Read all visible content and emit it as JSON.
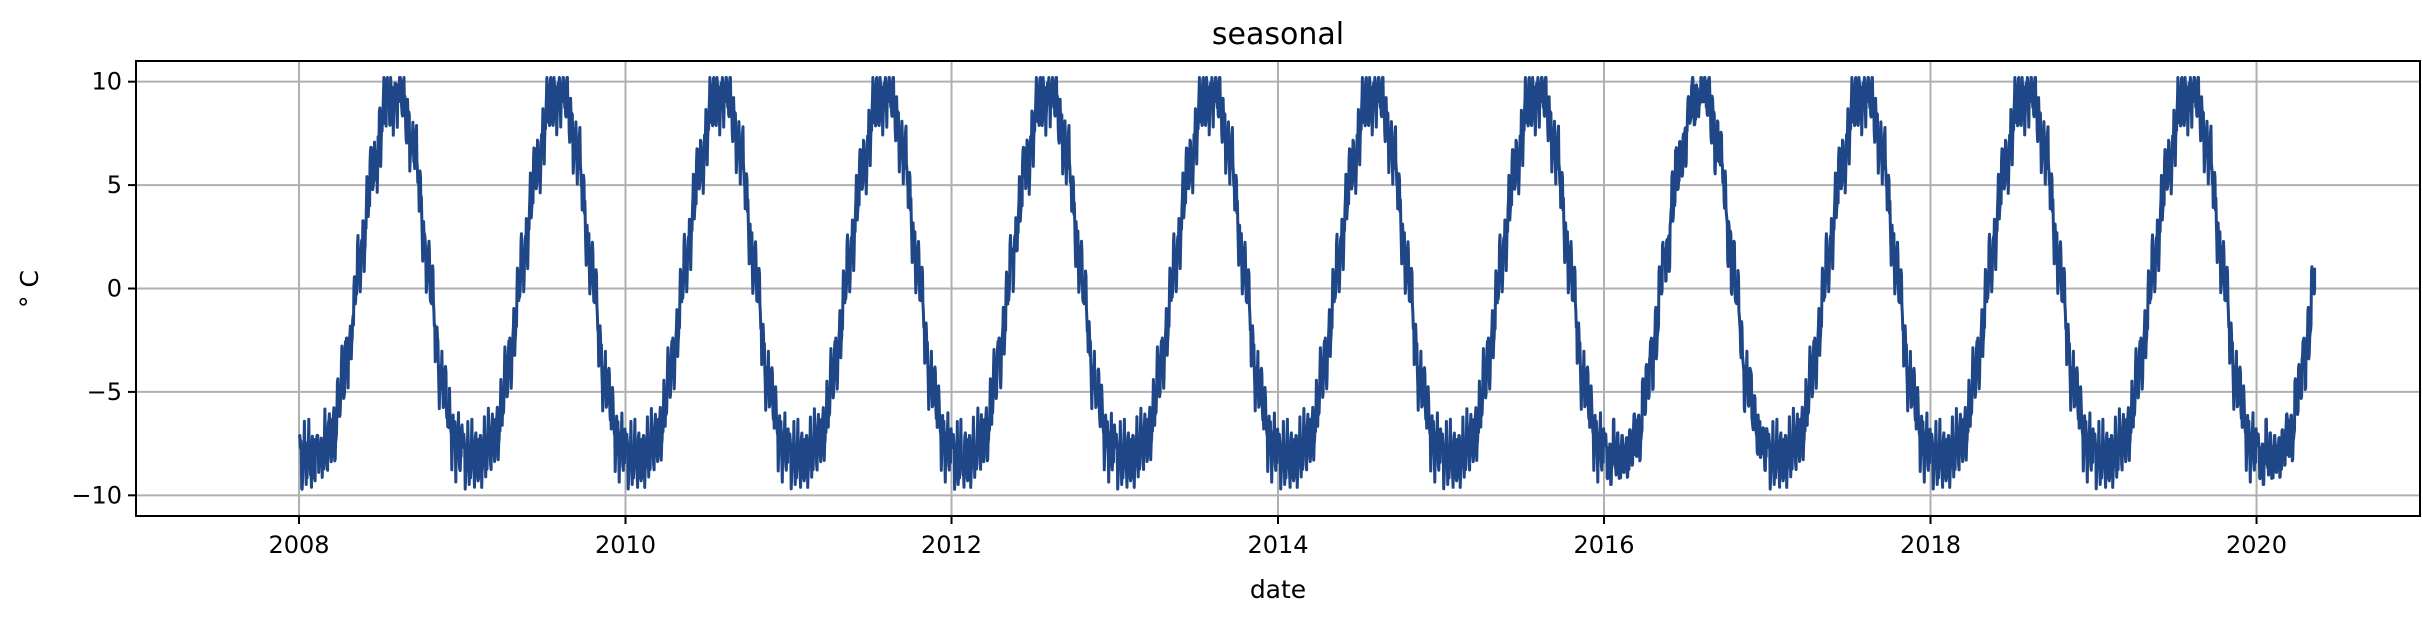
{
  "chart_data": {
    "type": "line",
    "title": "seasonal",
    "xlabel": "date",
    "ylabel": "$^\\circ$C",
    "ylabel_display": "° C",
    "x_type": "date",
    "xlim": [
      "2007-01-01",
      "2021-01-01"
    ],
    "ylim": [
      -11,
      11
    ],
    "x_ticks": [
      "2008",
      "2010",
      "2012",
      "2014",
      "2016",
      "2018",
      "2020"
    ],
    "y_ticks": [
      -10,
      -5,
      0,
      5,
      10
    ],
    "y_tick_labels": [
      "−10",
      "−5",
      "0",
      "5",
      "10"
    ],
    "grid": true,
    "legend": false,
    "series": [
      {
        "color": "#1f4788",
        "x_start": "2008-01-01",
        "x_end": "2020-05-10",
        "period": "1 year",
        "annual_cycle": [
          {
            "month": "Jan",
            "value": -8.2
          },
          {
            "month": "Feb",
            "value": -8.0
          },
          {
            "month": "Mar",
            "value": -7.0
          },
          {
            "month": "Apr",
            "value": -3.5
          },
          {
            "month": "May",
            "value": 1.5
          },
          {
            "month": "Jun",
            "value": 6.0
          },
          {
            "month": "Jul",
            "value": 9.0
          },
          {
            "month": "Aug",
            "value": 9.5
          },
          {
            "month": "Sep",
            "value": 6.5
          },
          {
            "month": "Oct",
            "value": 1.0
          },
          {
            "month": "Nov",
            "value": -4.5
          },
          {
            "month": "Dec",
            "value": -7.5
          }
        ],
        "max": 10.2,
        "min": -9.8,
        "last_value": 1.0
      }
    ]
  }
}
